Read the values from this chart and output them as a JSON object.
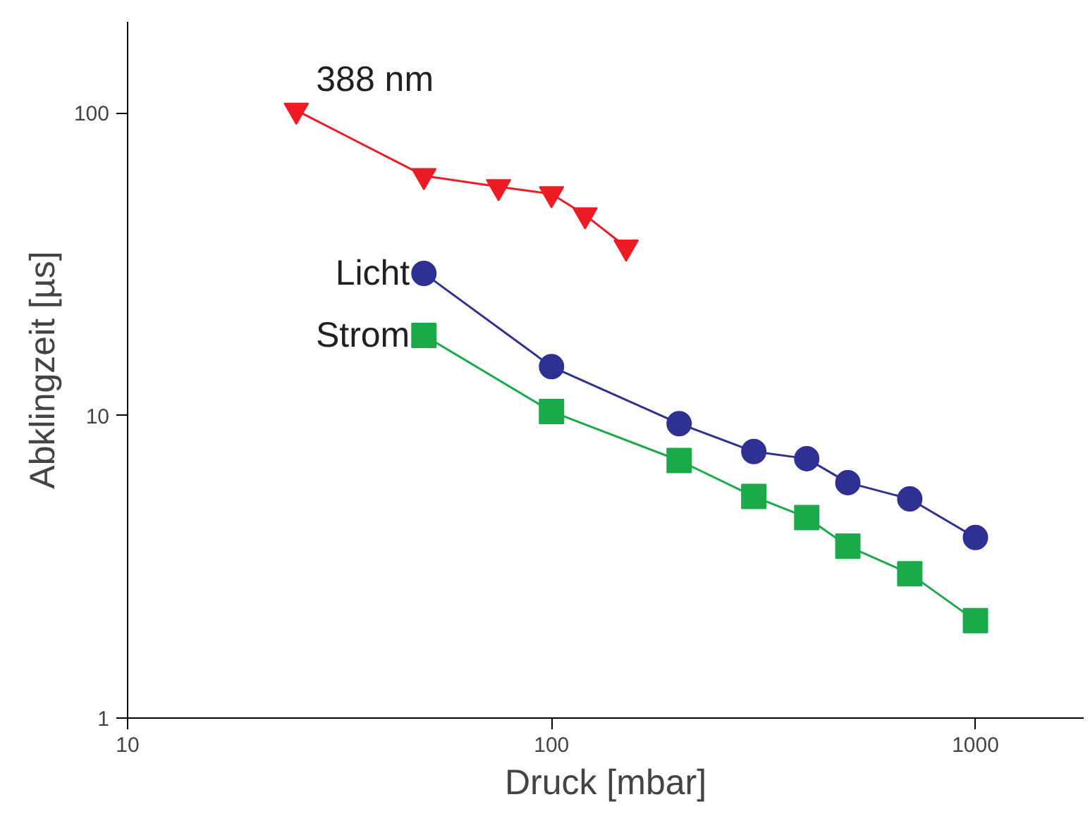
{
  "chart_data": {
    "type": "line",
    "xlabel": "Druck [mbar]",
    "ylabel": "Abklingzeit [µs]",
    "log": "xy",
    "grid": false,
    "line_style": "solid",
    "xlim": [
      10,
      1800
    ],
    "ylim": [
      1,
      200
    ],
    "xticks": [
      10,
      100,
      1000
    ],
    "yticks": [
      1,
      10,
      100
    ],
    "series": [
      {
        "name": "388 nm",
        "color": "#ed1c24",
        "marker": "triangle_down",
        "x": [
          25,
          50,
          75,
          100,
          120,
          150
        ],
        "values": [
          102,
          62,
          57,
          54,
          46,
          36
        ]
      },
      {
        "name": "Licht",
        "color": "#2e3192",
        "marker": "circle",
        "x": [
          50,
          100,
          200,
          300,
          400,
          500,
          700,
          1000
        ],
        "values": [
          29.5,
          14.5,
          9.4,
          7.6,
          7.2,
          6.0,
          5.3,
          3.95
        ]
      },
      {
        "name": "Strom",
        "color": "#1aaa4a",
        "marker": "square",
        "x": [
          50,
          100,
          200,
          300,
          400,
          500,
          700,
          1000
        ],
        "values": [
          18.4,
          10.3,
          7.1,
          5.4,
          4.6,
          3.7,
          3.0,
          2.1
        ]
      }
    ]
  }
}
